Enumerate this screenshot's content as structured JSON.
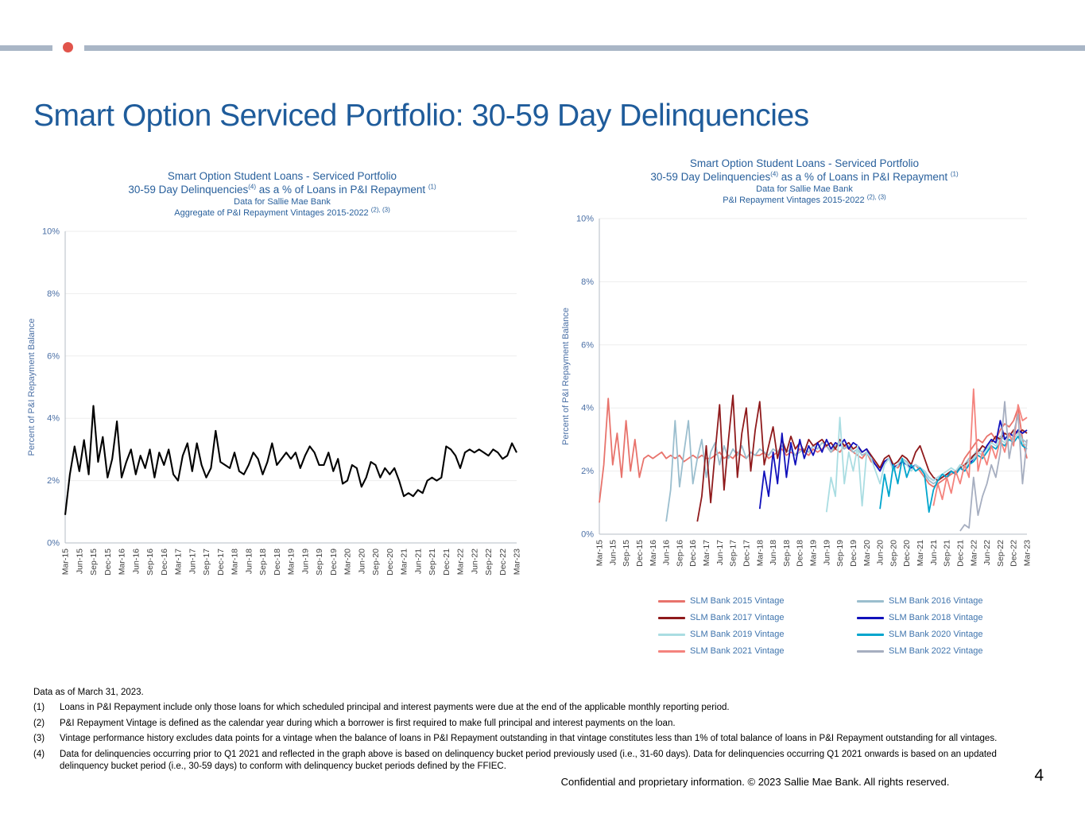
{
  "slide": {
    "title": "Smart Option Serviced Portfolio: 30-59 Day Delinquencies",
    "page_number": "4",
    "footer": "Confidential and proprietary information. © 2023 Sallie Mae Bank. All rights reserved.",
    "data_as_of": "Data as of March 31, 2023.",
    "footnotes": [
      {
        "num": "(1)",
        "text": "Loans in P&I Repayment include only those loans for which scheduled principal and interest payments were due at the end of the applicable monthly reporting period."
      },
      {
        "num": "(2)",
        "text": "P&I Repayment Vintage is defined as the calendar year during which a borrower is first required to make full principal and interest payments on the loan."
      },
      {
        "num": "(3)",
        "text": "Vintage performance history excludes data points for a vintage when the balance of loans in P&I Repayment outstanding in that vintage constitutes less than 1% of total balance of loans in P&I Repayment outstanding for all vintages."
      },
      {
        "num": "(4)",
        "text": "Data for delinquencies occurring prior to Q1 2021 and reflected in the graph above is based on delinquency bucket period previously used (i.e., 31-60 days).  Data for delinquencies occurring Q1 2021 onwards is based on an updated delinquency bucket period (i.e., 30-59 days) to conform with delinquency bucket periods defined by the FFIEC."
      }
    ],
    "colors": {
      "top_bar": "#A9B6C6",
      "accent_dot": "#E1544B",
      "title_blue": "#1F5C9B",
      "chart_title_blue": "#29609C",
      "axis_text_blue": "#4A6FA5",
      "legend_label_blue": "#3F74AD"
    }
  },
  "chart_data": [
    {
      "type": "line",
      "t1": "Smart Option Student Loans - Serviced Portfolio",
      "t2a": "30-59 Day Delinquencies",
      "t2sup1": "(4)",
      "t2b": " as a % of Loans in P&I Repayment ",
      "t2sup2": "(1)",
      "t3": "Data for Sallie Mae Bank",
      "t4a": "Aggregate of P&I Repayment Vintages 2015-2022 ",
      "t4sup": "(2), (3)",
      "ylabel": "Percent of P&I Repayment  Balance",
      "ylim": [
        0,
        10
      ],
      "yticks": [
        "0%",
        "2%",
        "4%",
        "6%",
        "8%",
        "10%"
      ],
      "grid": "horizontal-light",
      "frequency": "monthly",
      "x_tick_labels": [
        "Mar-15",
        "Jun-15",
        "Sep-15",
        "Dec-15",
        "Mar-16",
        "Jun-16",
        "Sep-16",
        "Dec-16",
        "Mar-17",
        "Jun-17",
        "Sep-17",
        "Dec-17",
        "Mar-18",
        "Jun-18",
        "Sep-18",
        "Dec-18",
        "Mar-19",
        "Jun-19",
        "Sep-19",
        "Dec-19",
        "Mar-20",
        "Jun-20",
        "Sep-20",
        "Dec-20",
        "Mar-21",
        "Jun-21",
        "Sep-21",
        "Dec-21",
        "Mar-22",
        "Jun-22",
        "Sep-22",
        "Dec-22",
        "Mar-23"
      ],
      "series": [
        {
          "name": "Aggregate of P&I Repayment Vintages 2015-2022",
          "color": "#000000",
          "start": 0,
          "values": [
            0.9,
            2.2,
            3.1,
            2.3,
            3.3,
            2.2,
            4.4,
            2.6,
            3.4,
            2.1,
            2.7,
            3.9,
            2.1,
            2.6,
            3.0,
            2.2,
            2.8,
            2.4,
            3.0,
            2.1,
            2.9,
            2.5,
            3.0,
            2.2,
            2.0,
            2.8,
            3.2,
            2.3,
            3.2,
            2.5,
            2.1,
            2.4,
            3.6,
            2.6,
            2.5,
            2.4,
            2.9,
            2.3,
            2.2,
            2.5,
            2.9,
            2.7,
            2.2,
            2.6,
            3.2,
            2.5,
            2.7,
            2.9,
            2.7,
            2.9,
            2.4,
            2.8,
            3.1,
            2.9,
            2.5,
            2.5,
            2.9,
            2.3,
            2.7,
            1.9,
            2.0,
            2.5,
            2.4,
            1.8,
            2.1,
            2.6,
            2.5,
            2.1,
            2.4,
            2.2,
            2.4,
            2.0,
            1.5,
            1.6,
            1.5,
            1.7,
            1.6,
            2.0,
            2.1,
            2.0,
            2.1,
            3.1,
            3.0,
            2.8,
            2.4,
            2.9,
            3.0,
            2.9,
            3.0,
            2.9,
            2.8,
            3.0,
            2.9,
            2.7,
            2.8,
            3.2,
            2.9
          ]
        }
      ]
    },
    {
      "type": "line",
      "t1": "Smart Option Student Loans - Serviced Portfolio",
      "t2a": "30-59  Day Delinquencies",
      "t2sup1": "(4)",
      "t2b": " as a % of Loans in P&I Repayment ",
      "t2sup2": "(1)",
      "t3": "Data for Sallie Mae Bank",
      "t4a": "P&I Repayment Vintages 2015-2022 ",
      "t4sup": "(2), (3)",
      "ylabel": "Percent of P&I Repayment  Balance",
      "ylim": [
        0,
        10
      ],
      "yticks": [
        "0%",
        "2%",
        "4%",
        "6%",
        "8%",
        "10%"
      ],
      "grid": "horizontal-light",
      "frequency": "monthly",
      "legend": {
        "position": "bottom",
        "columns": 2
      },
      "x_tick_labels": [
        "Mar-15",
        "Jun-15",
        "Sep-15",
        "Dec-15",
        "Mar-16",
        "Jun-16",
        "Sep-16",
        "Dec-16",
        "Mar-17",
        "Jun-17",
        "Sep-17",
        "Dec-17",
        "Mar-18",
        "Jun-18",
        "Sep-18",
        "Dec-18",
        "Mar-19",
        "Jun-19",
        "Sep-19",
        "Dec-19",
        "Mar-20",
        "Jun-20",
        "Sep-20",
        "Dec-20",
        "Mar-21",
        "Jun-21",
        "Sep-21",
        "Dec-21",
        "Mar-22",
        "Jun-22",
        "Sep-22",
        "Dec-22",
        "Mar-23"
      ],
      "series": [
        {
          "name": "SLM Bank 2015 Vintage",
          "color": "#E8736C",
          "start": 0,
          "values": [
            1.0,
            2.2,
            4.3,
            2.2,
            3.2,
            1.8,
            3.6,
            2.0,
            3.0,
            1.8,
            2.4,
            2.5,
            2.4,
            2.5,
            2.6,
            2.4,
            2.5,
            2.4,
            2.5,
            2.3,
            2.4,
            2.5,
            2.4,
            2.5,
            2.4,
            2.4,
            2.5,
            2.6,
            2.4,
            2.5,
            2.4,
            2.6,
            2.5,
            2.4,
            2.6,
            2.5,
            2.5,
            2.6,
            2.4,
            2.5,
            2.6,
            2.7,
            2.5,
            2.6,
            2.5,
            2.7,
            2.6,
            2.5,
            2.7,
            2.6,
            2.7,
            2.8,
            2.6,
            2.7,
            2.6,
            2.8,
            2.7,
            2.6,
            2.5,
            2.4,
            2.6,
            2.3,
            2.2,
            2.1,
            2.3,
            2.4,
            2.2,
            2.1,
            2.3,
            2.2,
            2.1,
            2.2,
            2.0,
            1.8,
            1.6,
            1.5,
            1.6,
            1.7,
            1.8,
            1.9,
            2.0,
            2.1,
            2.4,
            2.6,
            2.8,
            3.0,
            2.9,
            3.1,
            3.2,
            3.0,
            3.3,
            3.5,
            3.4,
            3.6,
            4.0,
            3.0,
            2.4
          ]
        },
        {
          "name": "SLM Bank 2016 Vintage",
          "color": "#9BBECE",
          "start": 15,
          "values": [
            0.4,
            1.4,
            3.6,
            1.5,
            2.6,
            3.6,
            1.6,
            2.4,
            3.0,
            1.8,
            2.6,
            2.9,
            2.2,
            2.8,
            2.4,
            2.7,
            2.5,
            2.8,
            2.4,
            2.6,
            2.5,
            2.7,
            2.6,
            2.5,
            2.7,
            2.6,
            2.8,
            2.6,
            2.7,
            2.5,
            2.6,
            2.7,
            2.6,
            2.8,
            2.7,
            2.9,
            2.8,
            2.6,
            2.8,
            2.9,
            2.7,
            2.8,
            2.6,
            2.7,
            2.5,
            2.6,
            2.4,
            2.2,
            2.0,
            2.3,
            2.4,
            2.1,
            2.2,
            2.4,
            2.3,
            2.1,
            2.2,
            2.1,
            1.9,
            1.7,
            1.6,
            1.7,
            1.8,
            1.9,
            2.0,
            1.9,
            2.1,
            2.2,
            2.4,
            2.5,
            2.7,
            2.6,
            2.8,
            3.0,
            2.9,
            3.1,
            3.0,
            3.2,
            3.1,
            3.3,
            3.0,
            2.9
          ]
        },
        {
          "name": "SLM Bank 2017 Vintage",
          "color": "#8F1A1C",
          "start": 22,
          "values": [
            0.4,
            1.2,
            2.8,
            1.0,
            2.6,
            4.1,
            1.4,
            3.0,
            4.4,
            1.8,
            3.2,
            4.0,
            2.0,
            3.3,
            4.2,
            2.2,
            2.8,
            3.4,
            2.4,
            3.0,
            2.6,
            3.1,
            2.7,
            2.9,
            2.6,
            3.0,
            2.8,
            2.9,
            3.0,
            2.8,
            2.9,
            2.7,
            3.0,
            2.8,
            2.9,
            2.7,
            2.8,
            2.6,
            2.7,
            2.5,
            2.3,
            2.1,
            2.4,
            2.5,
            2.2,
            2.3,
            2.5,
            2.4,
            2.2,
            2.6,
            2.8,
            2.4,
            2.0,
            1.8,
            1.7,
            1.8,
            1.9,
            2.0,
            1.9,
            2.1,
            2.2,
            2.3,
            2.5,
            2.6,
            2.8,
            2.7,
            2.9,
            3.1,
            3.0,
            3.2,
            3.1,
            3.3,
            3.2,
            3.3,
            3.2
          ]
        },
        {
          "name": "SLM Bank 2018 Vintage",
          "color": "#1111BB",
          "start": 36,
          "values": [
            0.8,
            2.0,
            1.2,
            2.6,
            1.6,
            3.2,
            1.8,
            2.9,
            2.2,
            3.0,
            2.4,
            2.8,
            2.5,
            2.9,
            2.6,
            3.0,
            2.7,
            2.9,
            2.8,
            3.0,
            2.7,
            2.9,
            2.8,
            2.6,
            2.7,
            2.4,
            2.2,
            2.0,
            2.3,
            2.4,
            2.1,
            2.2,
            2.3,
            2.2,
            2.1,
            2.2,
            2.1,
            2.0,
            1.8,
            1.7,
            1.8,
            1.9,
            1.8,
            2.0,
            1.9,
            2.1,
            2.0,
            2.2,
            2.4,
            2.6,
            2.5,
            2.8,
            3.0,
            2.9,
            3.6,
            3.0,
            3.2,
            3.1,
            3.3,
            3.2,
            3.3
          ]
        },
        {
          "name": "SLM Bank 2019 Vintage",
          "color": "#AADDE2",
          "start": 51,
          "values": [
            0.7,
            1.8,
            1.2,
            3.7,
            1.6,
            2.6,
            2.0,
            2.8,
            0.9,
            2.6,
            2.4,
            2.0,
            1.6,
            2.2,
            2.4,
            2.0,
            2.2,
            2.4,
            2.2,
            2.0,
            2.2,
            2.1,
            2.0,
            1.8,
            1.7,
            1.8,
            1.9,
            2.0,
            2.1,
            2.0,
            2.2,
            2.1,
            2.3,
            2.4,
            2.6,
            2.5,
            2.7,
            2.9,
            2.8,
            3.0,
            2.9,
            3.1,
            3.0,
            3.2,
            2.9,
            2.8
          ]
        },
        {
          "name": "SLM Bank 2020 Vintage",
          "color": "#00A5CD",
          "start": 63,
          "values": [
            0.8,
            1.9,
            1.2,
            2.2,
            1.6,
            2.4,
            1.8,
            2.2,
            2.0,
            2.1,
            1.9,
            0.7,
            1.4,
            1.7,
            1.9,
            1.8,
            2.0,
            1.9,
            2.1,
            2.0,
            2.2,
            2.3,
            2.5,
            2.4,
            2.6,
            2.8,
            2.7,
            2.9,
            2.8,
            3.0,
            2.9,
            3.1,
            2.8,
            2.7
          ]
        },
        {
          "name": "SLM Bank 2021 Vintage",
          "color": "#F4837D",
          "start": 75,
          "values": [
            0.9,
            1.6,
            1.1,
            1.8,
            1.3,
            2.0,
            1.6,
            2.2,
            1.8,
            4.6,
            2.0,
            2.6,
            2.2,
            2.8,
            2.4,
            3.0,
            2.6,
            3.2,
            2.8,
            4.1,
            3.6,
            3.7
          ]
        },
        {
          "name": "SLM Bank 2022 Vintage",
          "color": "#A6AEC0",
          "start": 81,
          "values": [
            0.1,
            0.3,
            0.2,
            1.8,
            0.6,
            1.2,
            1.6,
            2.2,
            1.8,
            2.6,
            4.2,
            2.4,
            3.2,
            3.8,
            1.6,
            3.0
          ]
        }
      ]
    }
  ]
}
